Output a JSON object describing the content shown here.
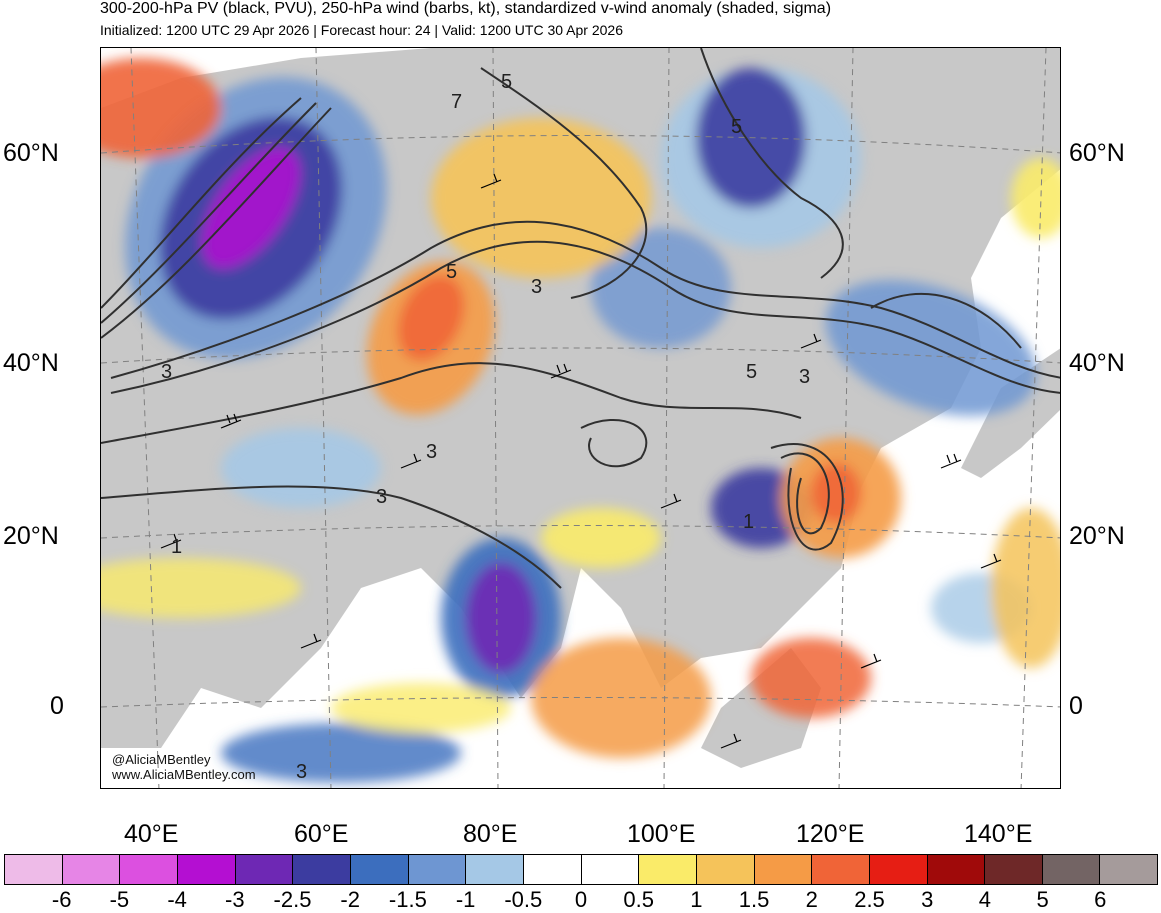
{
  "header": {
    "title": "300-200-hPa PV (black, PVU), 250-hPa wind (barbs, kt), standardized v-wind anomaly (shaded, sigma)",
    "subtitle": "Initialized: 1200 UTC 29 Apr 2026 | Forecast hour: 24 | Valid: 1200 UTC 30 Apr 2026"
  },
  "map": {
    "lat_labels_left": [
      "60°N",
      "40°N",
      "20°N",
      "0"
    ],
    "lat_labels_right": [
      "60°N",
      "40°N",
      "20°N",
      "0"
    ],
    "lon_labels": [
      "40°E",
      "60°E",
      "80°E",
      "100°E",
      "120°E",
      "140°E"
    ],
    "contour_labels": [
      "5",
      "7",
      "5",
      "5",
      "3",
      "3",
      "3",
      "3",
      "5",
      "3",
      "1",
      "1",
      "3"
    ],
    "credit_handle": "@AliciaMBentley",
    "credit_url": "www.AliciaMBentley.com",
    "land_color": "#c8c8c8",
    "contour_color": "#303030"
  },
  "colorbar": {
    "colors": [
      "#eebbe8",
      "#e685e6",
      "#dc50e0",
      "#b40fd2",
      "#6e28b4",
      "#3c3ca0",
      "#3c6ebe",
      "#6e96d2",
      "#a5c8e6",
      "#ffffff",
      "#ffffff",
      "#faeb69",
      "#f5c35a",
      "#f59b46",
      "#f06437",
      "#e61e14",
      "#a00a0a",
      "#6e2828",
      "#736464",
      "#a59b9b"
    ],
    "labels": [
      "-6",
      "-5",
      "-4",
      "-3",
      "-2.5",
      "-2",
      "-1.5",
      "-1",
      "-0.5",
      "0",
      "0.5",
      "1",
      "1.5",
      "2",
      "2.5",
      "3",
      "4",
      "5",
      "6"
    ]
  }
}
